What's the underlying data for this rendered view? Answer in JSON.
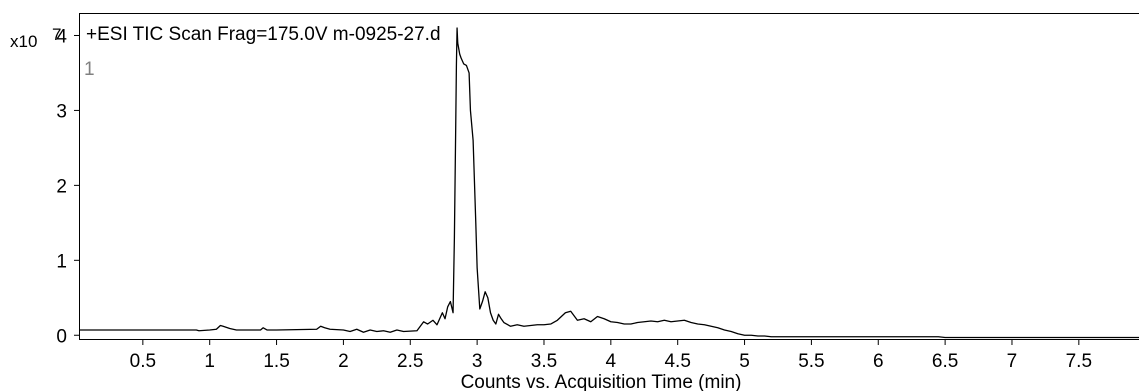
{
  "chart_data": {
    "type": "line",
    "title": "+ESI TIC Scan Frag=175.0V m-0925-27.d",
    "panel_index": "1",
    "y_scale_label": "x10",
    "y_scale_exponent": "7",
    "xlabel": "Counts vs. Acquisition Time (min)",
    "ylabel": "",
    "xlim": [
      0.03,
      7.95
    ],
    "ylim": [
      -0.05,
      4.3
    ],
    "x_ticks": [
      "0.5",
      "1",
      "1.5",
      "2",
      "2.5",
      "3",
      "3.5",
      "4",
      "4.5",
      "5",
      "5.5",
      "6",
      "6.5",
      "7",
      "7.5"
    ],
    "y_ticks": [
      "0",
      "1",
      "2",
      "3",
      "4"
    ],
    "grid": false,
    "line_color": "#000000",
    "series": [
      {
        "x": [
          0.03,
          0.9,
          0.92,
          1.0,
          1.05,
          1.08,
          1.1,
          1.15,
          1.2,
          1.38,
          1.4,
          1.43,
          1.5,
          1.8,
          1.83,
          1.86,
          1.9,
          2.0,
          2.05,
          2.1,
          2.15,
          2.2,
          2.25,
          2.3,
          2.35,
          2.4,
          2.45,
          2.55,
          2.6,
          2.63,
          2.67,
          2.7,
          2.74,
          2.76,
          2.78,
          2.8,
          2.82,
          2.83,
          2.84,
          2.845,
          2.85,
          2.855,
          2.86,
          2.865,
          2.87,
          2.88,
          2.9,
          2.92,
          2.94,
          2.95,
          2.97,
          2.99,
          3.0,
          3.02,
          3.04,
          3.06,
          3.08,
          3.1,
          3.12,
          3.14,
          3.16,
          3.18,
          3.2,
          3.25,
          3.3,
          3.35,
          3.4,
          3.45,
          3.5,
          3.55,
          3.6,
          3.63,
          3.66,
          3.7,
          3.75,
          3.8,
          3.85,
          3.9,
          3.95,
          4.0,
          4.05,
          4.1,
          4.15,
          4.2,
          4.25,
          4.3,
          4.35,
          4.4,
          4.45,
          4.5,
          4.55,
          4.6,
          4.65,
          4.7,
          4.75,
          4.8,
          4.85,
          4.9,
          4.95,
          5.0,
          5.05,
          5.1,
          5.15,
          5.2,
          5.5,
          6.0,
          6.45,
          6.5,
          7.0,
          7.5,
          7.95
        ],
        "y": [
          0.07,
          0.07,
          0.06,
          0.07,
          0.08,
          0.13,
          0.12,
          0.09,
          0.07,
          0.07,
          0.1,
          0.07,
          0.07,
          0.08,
          0.12,
          0.1,
          0.08,
          0.07,
          0.05,
          0.08,
          0.04,
          0.07,
          0.05,
          0.06,
          0.04,
          0.07,
          0.05,
          0.06,
          0.18,
          0.15,
          0.2,
          0.14,
          0.3,
          0.22,
          0.38,
          0.45,
          0.3,
          1.3,
          2.8,
          3.6,
          4.1,
          3.9,
          3.85,
          3.8,
          3.75,
          3.7,
          3.62,
          3.6,
          3.5,
          3.0,
          2.6,
          1.5,
          0.9,
          0.35,
          0.45,
          0.58,
          0.5,
          0.3,
          0.2,
          0.15,
          0.28,
          0.22,
          0.17,
          0.12,
          0.14,
          0.12,
          0.13,
          0.14,
          0.14,
          0.15,
          0.2,
          0.25,
          0.3,
          0.32,
          0.2,
          0.22,
          0.18,
          0.25,
          0.22,
          0.18,
          0.17,
          0.15,
          0.15,
          0.17,
          0.18,
          0.19,
          0.18,
          0.2,
          0.18,
          0.19,
          0.2,
          0.17,
          0.15,
          0.14,
          0.12,
          0.1,
          0.07,
          0.05,
          0.02,
          0.0,
          0.0,
          -0.01,
          -0.01,
          -0.02,
          -0.02,
          -0.02,
          -0.02,
          -0.03,
          -0.03,
          -0.03,
          -0.03
        ]
      }
    ]
  }
}
